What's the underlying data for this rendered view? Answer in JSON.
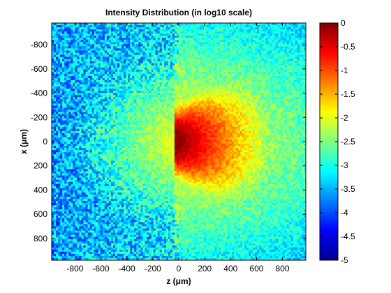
{
  "chart_data": {
    "type": "heatmap",
    "title": "Intensity Distribution (in log10 scale)",
    "xlabel": "z (μm)",
    "ylabel": "x (μm)",
    "xlim": [
      -980,
      980
    ],
    "ylim": [
      -980,
      980
    ],
    "y_reversed": true,
    "xticks": [
      -800,
      -600,
      -400,
      -200,
      0,
      200,
      400,
      600,
      800
    ],
    "yticks": [
      -800,
      -600,
      -400,
      -200,
      0,
      200,
      400,
      600,
      800
    ],
    "colorbar": {
      "colormap": "jet",
      "clim": [
        -5,
        0
      ],
      "ticks": [
        0,
        -0.5,
        -1,
        -1.5,
        -2,
        -2.5,
        -3,
        -3.5,
        -4,
        -4.5,
        -5
      ]
    },
    "field_model": {
      "source_z": 0,
      "source_x": 0,
      "peak_value": 0,
      "background_value": -3.2,
      "noise_amplitude": 0.55,
      "forward_decay_length": 380,
      "lateral_width": 150,
      "backward_cutoff": -30
    }
  }
}
